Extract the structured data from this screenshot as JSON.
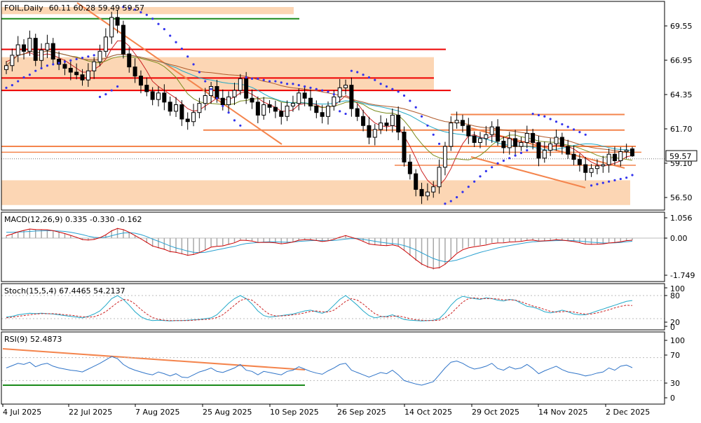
{
  "window": {
    "title": "FOIL,Daily",
    "ohlc": "60.11 60.28 59.49 59.57"
  },
  "colors": {
    "bull": "#ffffff",
    "bear": "#000000",
    "outline": "#000000",
    "zone": "#fcd6b4",
    "resistance": "#ee0000",
    "trend": "#f4844c",
    "green": "#1a8a1a",
    "sar": "#3333ee",
    "ma_fast": "#7a8a1a",
    "ma_mid": "#cc2222",
    "ma_slow": "#22a8c4",
    "ma_long": "#b05a2a",
    "macd_hist": "#a8a8a8",
    "macd_line": "#cc0000",
    "signal_line": "#29a0d0",
    "stoch_main": "#20a8c8",
    "stoch_signal": "#cc2222",
    "rsi_line": "#2f74c8",
    "price_label_bg": "#ffffff",
    "panel_border": "#000000"
  },
  "price_panel": {
    "y_ticks": [
      "69.55",
      "66.95",
      "64.35",
      "61.70",
      "59.10",
      "56.50"
    ],
    "current_price": "59.57",
    "levels_red": [
      67.75,
      65.55,
      64.6
    ],
    "levels_orange": [
      62.75,
      61.55,
      60.3
    ],
    "green_level": 70.1
  },
  "macd_panel": {
    "label": "MACD(12,26,9) 0.335 -0.330 -0.162",
    "y_ticks": [
      "1.056",
      "0.00",
      "-1.749"
    ]
  },
  "stoch_panel": {
    "label": "Stoch(15,5,4) 67.4465 54.2137",
    "y_ticks": [
      "100",
      "80",
      "20",
      "0"
    ]
  },
  "rsi_panel": {
    "label": "RSI(9) 52.4873",
    "y_ticks": [
      "100",
      "70",
      "30",
      "0"
    ]
  },
  "x_axis": {
    "labels": [
      "4 Jul 2025",
      "22 Jul 2025",
      "7 Aug 2025",
      "25 Aug 2025",
      "10 Sep 2025",
      "26 Sep 2025",
      "14 Oct 2025",
      "29 Oct 2025",
      "14 Nov 2025",
      "2 Dec 2025"
    ]
  },
  "chart_data": {
    "type": "candlestick",
    "symbol": "FOIL",
    "timeframe": "Daily",
    "last_bar": {
      "open": 60.11,
      "high": 60.28,
      "low": 59.49,
      "close": 59.57
    },
    "y_ticks": [
      69.55,
      66.95,
      64.35,
      61.7,
      59.1,
      56.5
    ],
    "ylim": [
      55.8,
      70.9
    ],
    "closes": [
      66.5,
      67.3,
      68.1,
      67.6,
      68.6,
      66.9,
      67.7,
      68.2,
      67.0,
      66.6,
      66.3,
      66.0,
      65.8,
      65.4,
      66.1,
      66.8,
      67.6,
      68.7,
      70.2,
      69.6,
      67.4,
      66.4,
      65.7,
      65.0,
      64.5,
      63.9,
      64.4,
      63.7,
      63.0,
      63.5,
      62.4,
      62.2,
      62.9,
      63.6,
      64.2,
      64.9,
      64.0,
      63.5,
      64.1,
      64.6,
      65.5,
      64.0,
      63.7,
      62.7,
      63.5,
      63.3,
      63.0,
      62.6,
      63.4,
      63.6,
      64.4,
      64.0,
      63.4,
      62.9,
      62.6,
      63.4,
      64.1,
      64.8,
      65.0,
      63.2,
      62.6,
      61.9,
      61.0,
      61.6,
      62.1,
      61.9,
      62.7,
      61.4,
      59.1,
      58.2,
      57.0,
      56.5,
      56.8,
      57.2,
      58.7,
      60.3,
      62.1,
      62.3,
      61.9,
      61.1,
      60.6,
      60.9,
      61.2,
      61.8,
      60.7,
      60.2,
      60.9,
      60.3,
      60.6,
      61.3,
      60.6,
      59.4,
      60.0,
      60.5,
      61.0,
      60.3,
      59.7,
      59.3,
      58.9,
      58.3,
      58.6,
      58.8,
      58.9,
      59.7,
      59.2,
      59.9,
      60.0,
      59.57
    ],
    "ma_fast": [
      66.8,
      67.0,
      67.3,
      67.4,
      67.5,
      67.3,
      67.3,
      67.4,
      67.3,
      67.1,
      66.9,
      66.6,
      66.3,
      66.0,
      66.0,
      66.2,
      66.5,
      67.0,
      67.8,
      68.4,
      68.4,
      68.0,
      67.4,
      66.8,
      66.1,
      65.3,
      64.9,
      64.6,
      64.3,
      64.0,
      63.6,
      63.2,
      63.0,
      63.1,
      63.4,
      63.7,
      64.0,
      63.9,
      63.9,
      64.1,
      64.4,
      64.5,
      64.3,
      64.0,
      63.7,
      63.5,
      63.3,
      63.0,
      63.0,
      63.1,
      63.5,
      63.6,
      63.6,
      63.5,
      63.3,
      63.3,
      63.4,
      63.8,
      64.2,
      64.0,
      63.6,
      63.0,
      62.5,
      62.1,
      61.9,
      61.8,
      61.9,
      61.8,
      61.1,
      60.3,
      59.4,
      58.4,
      57.7,
      57.3,
      57.3,
      57.8,
      58.6,
      59.6,
      60.5,
      61.1,
      61.2,
      61.0,
      60.9,
      61.1,
      61.1,
      61.0,
      60.9,
      60.7,
      60.6,
      60.7,
      60.7,
      60.4,
      60.3,
      60.3,
      60.4,
      60.4,
      60.3,
      60.1,
      59.8,
      59.4,
      59.1,
      58.9,
      58.8,
      58.9,
      59.0,
      59.2,
      59.5,
      59.6
    ],
    "sar": [
      64.8,
      65.0,
      65.3,
      65.6,
      65.8,
      66.1,
      66.3,
      66.5,
      66.6,
      66.7,
      66.8,
      66.9,
      67.0,
      67.1,
      67.2,
      67.3,
      64.1,
      64.3,
      64.6,
      64.9,
      71.0,
      70.9,
      70.8,
      70.6,
      70.4,
      70.1,
      69.7,
      69.3,
      68.8,
      68.3,
      67.8,
      67.2,
      66.6,
      66.0,
      65.3,
      64.7,
      64.0,
      63.4,
      62.9,
      62.3,
      61.9,
      65.6,
      65.5,
      65.5,
      65.4,
      65.3,
      65.3,
      65.2,
      65.1,
      65.1,
      65.0,
      64.9,
      64.8,
      64.7,
      64.6,
      64.5,
      64.3,
      63.0,
      62.8,
      66.1,
      66.0,
      65.8,
      65.6,
      65.4,
      65.1,
      64.9,
      64.7,
      64.5,
      64.2,
      63.8,
      63.3,
      62.6,
      61.9,
      61.2,
      60.5,
      55.9,
      56.1,
      56.4,
      56.8,
      57.2,
      57.6,
      58.0,
      58.4,
      58.7,
      59.0,
      59.2,
      59.4,
      59.6,
      59.8,
      60.0,
      62.8,
      62.7,
      62.6,
      62.4,
      62.2,
      62.0,
      61.8,
      61.6,
      61.4,
      61.2,
      57.3,
      57.4,
      57.5,
      57.6,
      57.7,
      57.8,
      57.9,
      58.1
    ],
    "macd": [
      0.1,
      0.2,
      0.32,
      0.4,
      0.48,
      0.45,
      0.44,
      0.43,
      0.38,
      0.3,
      0.22,
      0.12,
      0.02,
      -0.1,
      -0.12,
      -0.08,
      0.02,
      0.18,
      0.4,
      0.52,
      0.45,
      0.3,
      0.12,
      -0.06,
      -0.25,
      -0.44,
      -0.52,
      -0.6,
      -0.72,
      -0.75,
      -0.82,
      -0.9,
      -0.85,
      -0.74,
      -0.6,
      -0.44,
      -0.4,
      -0.38,
      -0.3,
      -0.22,
      -0.08,
      -0.1,
      -0.14,
      -0.22,
      -0.22,
      -0.22,
      -0.25,
      -0.3,
      -0.26,
      -0.2,
      -0.1,
      -0.07,
      -0.08,
      -0.12,
      -0.18,
      -0.14,
      -0.06,
      0.06,
      0.15,
      0.05,
      -0.05,
      -0.18,
      -0.32,
      -0.36,
      -0.38,
      -0.4,
      -0.35,
      -0.42,
      -0.65,
      -0.9,
      -1.15,
      -1.38,
      -1.52,
      -1.6,
      -1.55,
      -1.35,
      -1.05,
      -0.75,
      -0.55,
      -0.45,
      -0.4,
      -0.36,
      -0.32,
      -0.24,
      -0.22,
      -0.22,
      -0.18,
      -0.17,
      -0.15,
      -0.1,
      -0.09,
      -0.15,
      -0.14,
      -0.12,
      -0.08,
      -0.1,
      -0.14,
      -0.18,
      -0.24,
      -0.32,
      -0.33,
      -0.32,
      -0.3,
      -0.25,
      -0.22,
      -0.18,
      -0.12,
      -0.1
    ],
    "signal": [
      0.3,
      0.3,
      0.31,
      0.32,
      0.34,
      0.36,
      0.37,
      0.38,
      0.38,
      0.36,
      0.34,
      0.3,
      0.24,
      0.18,
      0.1,
      0.04,
      0.02,
      0.05,
      0.12,
      0.2,
      0.26,
      0.28,
      0.25,
      0.18,
      0.08,
      -0.05,
      -0.16,
      -0.28,
      -0.4,
      -0.5,
      -0.58,
      -0.66,
      -0.72,
      -0.74,
      -0.72,
      -0.66,
      -0.6,
      -0.54,
      -0.48,
      -0.42,
      -0.34,
      -0.28,
      -0.25,
      -0.22,
      -0.2,
      -0.19,
      -0.19,
      -0.2,
      -0.21,
      -0.2,
      -0.17,
      -0.15,
      -0.13,
      -0.12,
      -0.13,
      -0.13,
      -0.12,
      -0.09,
      -0.05,
      -0.02,
      -0.03,
      -0.06,
      -0.11,
      -0.16,
      -0.21,
      -0.25,
      -0.28,
      -0.31,
      -0.38,
      -0.48,
      -0.6,
      -0.75,
      -0.9,
      -1.04,
      -1.14,
      -1.2,
      -1.18,
      -1.12,
      -1.02,
      -0.92,
      -0.82,
      -0.73,
      -0.65,
      -0.58,
      -0.5,
      -0.44,
      -0.38,
      -0.33,
      -0.28,
      -0.23,
      -0.19,
      -0.17,
      -0.15,
      -0.14,
      -0.13,
      -0.12,
      -0.12,
      -0.13,
      -0.15,
      -0.18,
      -0.21,
      -0.23,
      -0.25,
      -0.25,
      -0.24,
      -0.22,
      -0.19,
      -0.16
    ],
    "stoch_k": [
      24,
      26,
      30,
      32,
      34,
      33,
      34,
      33,
      32,
      30,
      28,
      26,
      24,
      22,
      26,
      32,
      40,
      55,
      72,
      80,
      70,
      55,
      38,
      25,
      18,
      15,
      16,
      15,
      14,
      15,
      15,
      16,
      17,
      18,
      20,
      22,
      30,
      45,
      60,
      72,
      80,
      72,
      58,
      40,
      28,
      24,
      26,
      28,
      30,
      32,
      36,
      40,
      42,
      38,
      34,
      40,
      55,
      70,
      80,
      68,
      55,
      40,
      28,
      22,
      25,
      26,
      30,
      24,
      18,
      16,
      15,
      14,
      15,
      16,
      20,
      35,
      55,
      70,
      78,
      75,
      72,
      70,
      74,
      72,
      68,
      66,
      70,
      68,
      60,
      52,
      50,
      45,
      38,
      35,
      38,
      42,
      38,
      32,
      30,
      30,
      35,
      40,
      45,
      50,
      55,
      60,
      65,
      67
    ],
    "stoch_d": [
      22,
      24,
      26,
      28,
      30,
      32,
      33,
      33,
      33,
      32,
      30,
      29,
      27,
      25,
      24,
      25,
      30,
      38,
      50,
      62,
      70,
      68,
      58,
      44,
      32,
      23,
      18,
      16,
      15,
      15,
      15,
      15,
      16,
      17,
      18,
      19,
      23,
      30,
      42,
      55,
      67,
      72,
      68,
      56,
      42,
      31,
      27,
      27,
      28,
      30,
      32,
      35,
      39,
      40,
      38,
      37,
      42,
      53,
      65,
      72,
      68,
      58,
      45,
      33,
      26,
      24,
      26,
      27,
      24,
      20,
      17,
      16,
      15,
      15,
      16,
      22,
      33,
      48,
      63,
      72,
      74,
      72,
      72,
      72,
      71,
      69,
      69,
      68,
      64,
      58,
      53,
      49,
      44,
      39,
      37,
      38,
      39,
      37,
      34,
      32,
      32,
      35,
      39,
      43,
      48,
      52,
      55,
      54
    ],
    "rsi": [
      52,
      56,
      60,
      58,
      62,
      54,
      58,
      60,
      55,
      52,
      50,
      48,
      47,
      45,
      50,
      55,
      60,
      66,
      72,
      68,
      58,
      52,
      48,
      45,
      42,
      40,
      45,
      42,
      38,
      42,
      36,
      35,
      40,
      45,
      48,
      52,
      46,
      44,
      48,
      52,
      58,
      48,
      46,
      40,
      46,
      44,
      42,
      40,
      46,
      48,
      54,
      50,
      46,
      43,
      41,
      47,
      52,
      58,
      60,
      48,
      44,
      40,
      36,
      40,
      44,
      42,
      48,
      40,
      30,
      27,
      24,
      22,
      25,
      28,
      40,
      52,
      62,
      64,
      60,
      54,
      50,
      52,
      55,
      60,
      51,
      48,
      54,
      50,
      52,
      58,
      51,
      42,
      47,
      51,
      55,
      49,
      45,
      43,
      41,
      38,
      40,
      43,
      45,
      52,
      48,
      55,
      57,
      52.49
    ]
  }
}
